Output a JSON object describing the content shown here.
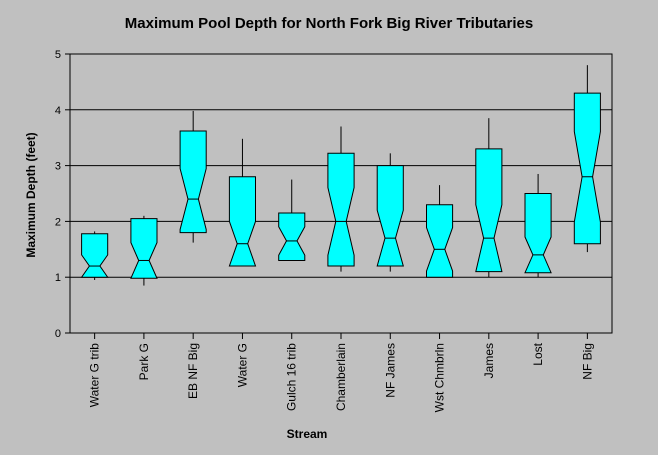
{
  "chart_data": {
    "type": "box",
    "notched": true,
    "title": "Maximum Pool Depth for North Fork Big River Tributaries",
    "xlabel": "Stream",
    "ylabel": "Maximum Depth (feet)",
    "ylim": [
      0,
      5
    ],
    "yticks": [
      0,
      1,
      2,
      3,
      4,
      5
    ],
    "grid": true,
    "box_color": "#00ffff",
    "background_color": "#c0c0c0",
    "series": [
      {
        "category": "Water G trib",
        "whisker_low": 0.95,
        "q1": 1.0,
        "median": 1.2,
        "q3": 1.78,
        "whisker_high": 1.82
      },
      {
        "category": "Park G",
        "whisker_low": 0.85,
        "q1": 0.98,
        "median": 1.3,
        "q3": 2.05,
        "whisker_high": 2.1
      },
      {
        "category": "EB NF Big",
        "whisker_low": 1.62,
        "q1": 1.8,
        "median": 2.4,
        "q3": 3.62,
        "whisker_high": 3.98
      },
      {
        "category": "Water G",
        "whisker_low": 1.2,
        "q1": 1.2,
        "median": 1.6,
        "q3": 2.8,
        "whisker_high": 3.48
      },
      {
        "category": "Gulch 16 trib",
        "whisker_low": 1.3,
        "q1": 1.3,
        "median": 1.65,
        "q3": 2.15,
        "whisker_high": 2.75
      },
      {
        "category": "Chamberlain",
        "whisker_low": 1.1,
        "q1": 1.2,
        "median": 2.0,
        "q3": 3.22,
        "whisker_high": 3.7
      },
      {
        "category": "NF James",
        "whisker_low": 1.1,
        "q1": 1.2,
        "median": 1.7,
        "q3": 3.0,
        "whisker_high": 3.22
      },
      {
        "category": "Wst Chmbrln",
        "whisker_low": 1.0,
        "q1": 1.0,
        "median": 1.5,
        "q3": 2.3,
        "whisker_high": 2.65
      },
      {
        "category": "James",
        "whisker_low": 1.0,
        "q1": 1.1,
        "median": 1.7,
        "q3": 3.3,
        "whisker_high": 3.85
      },
      {
        "category": "Lost",
        "whisker_low": 1.0,
        "q1": 1.08,
        "median": 1.4,
        "q3": 2.5,
        "whisker_high": 2.85
      },
      {
        "category": "NF Big",
        "whisker_low": 1.45,
        "q1": 1.6,
        "median": 2.8,
        "q3": 4.3,
        "whisker_high": 4.8
      }
    ]
  }
}
